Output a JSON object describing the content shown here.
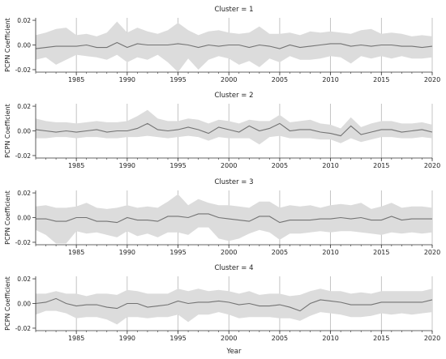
{
  "chart_data": [
    {
      "type": "area",
      "title": "Cluster = 1",
      "ylabel": "PCPN Coefficient",
      "xlabel": "",
      "xlim": [
        1981,
        2020
      ],
      "ylim": [
        -0.022,
        0.022
      ],
      "yticks": [
        -0.02,
        0.0,
        0.02
      ],
      "ytick_labels": [
        "-0.02",
        "0.00",
        "0.02"
      ],
      "xticks": [
        1985,
        1990,
        1995,
        2000,
        2005,
        2010,
        2015,
        2020
      ],
      "xtick_labels": [
        "1985",
        "1990",
        "1995",
        "2000",
        "2005",
        "2010",
        "2015",
        "2020"
      ],
      "grid": "vertical at major x ticks",
      "x": [
        1981,
        1982,
        1983,
        1984,
        1985,
        1986,
        1987,
        1988,
        1989,
        1990,
        1991,
        1992,
        1993,
        1994,
        1995,
        1996,
        1997,
        1998,
        1999,
        2000,
        2001,
        2002,
        2003,
        2004,
        2005,
        2006,
        2007,
        2008,
        2009,
        2010,
        2011,
        2012,
        2013,
        2014,
        2015,
        2016,
        2017,
        2018,
        2019,
        2020
      ],
      "series": [
        {
          "values": [
            -0.003,
            -0.002,
            -0.001,
            -0.001,
            -0.001,
            0.0,
            -0.002,
            -0.002,
            0.002,
            -0.002,
            0.001,
            0.0,
            0.0,
            0.0,
            0.001,
            0.0,
            -0.002,
            0.0,
            -0.001,
            0.0,
            0.0,
            -0.002,
            0.0,
            -0.001,
            -0.003,
            0.0,
            -0.002,
            -0.001,
            0.0,
            0.001,
            0.001,
            -0.001,
            0.0,
            -0.001,
            0.0,
            0.0,
            -0.001,
            -0.001,
            -0.002,
            -0.001
          ],
          "lower": [
            -0.012,
            -0.01,
            -0.016,
            -0.012,
            -0.008,
            -0.009,
            -0.01,
            -0.012,
            -0.008,
            -0.014,
            -0.01,
            -0.012,
            -0.008,
            -0.014,
            -0.022,
            -0.011,
            -0.02,
            -0.012,
            -0.009,
            -0.011,
            -0.016,
            -0.013,
            -0.018,
            -0.011,
            -0.014,
            -0.009,
            -0.012,
            -0.012,
            -0.011,
            -0.009,
            -0.01,
            -0.015,
            -0.009,
            -0.011,
            -0.009,
            -0.011,
            -0.009,
            -0.011,
            -0.011,
            -0.01
          ],
          "upper": [
            0.008,
            0.01,
            0.013,
            0.014,
            0.008,
            0.009,
            0.007,
            0.01,
            0.019,
            0.01,
            0.014,
            0.011,
            0.009,
            0.012,
            0.018,
            0.012,
            0.008,
            0.011,
            0.012,
            0.01,
            0.009,
            0.01,
            0.015,
            0.009,
            0.009,
            0.01,
            0.008,
            0.011,
            0.01,
            0.011,
            0.01,
            0.009,
            0.012,
            0.013,
            0.009,
            0.01,
            0.009,
            0.007,
            0.008,
            0.007
          ]
        }
      ]
    },
    {
      "type": "area",
      "title": "Cluster = 2",
      "ylabel": "PCPN Coefficient",
      "xlabel": "",
      "xlim": [
        1981,
        2020
      ],
      "ylim": [
        -0.022,
        0.022
      ],
      "yticks": [
        -0.02,
        0.0,
        0.02
      ],
      "ytick_labels": [
        "-0.02",
        "0.00",
        "0.02"
      ],
      "xticks": [
        1985,
        1990,
        1995,
        2000,
        2005,
        2010,
        2015,
        2020
      ],
      "xtick_labels": [
        "1985",
        "1990",
        "1995",
        "2000",
        "2005",
        "2010",
        "2015",
        "2020"
      ],
      "grid": "vertical at major x ticks",
      "x": [
        1981,
        1982,
        1983,
        1984,
        1985,
        1986,
        1987,
        1988,
        1989,
        1990,
        1991,
        1992,
        1993,
        1994,
        1995,
        1996,
        1997,
        1998,
        1999,
        2000,
        2001,
        2002,
        2003,
        2004,
        2005,
        2006,
        2007,
        2008,
        2009,
        2010,
        2011,
        2012,
        2013,
        2014,
        2015,
        2016,
        2017,
        2018,
        2019,
        2020
      ],
      "series": [
        {
          "values": [
            0.001,
            0.0,
            -0.001,
            0.0,
            -0.001,
            0.0,
            0.001,
            -0.001,
            0.0,
            0.0,
            0.002,
            0.006,
            0.001,
            0.0,
            0.001,
            0.003,
            0.001,
            -0.002,
            0.003,
            0.001,
            -0.001,
            0.004,
            0.0,
            0.002,
            0.006,
            0.0,
            0.001,
            0.001,
            -0.001,
            -0.002,
            -0.004,
            0.004,
            -0.003,
            -0.001,
            0.001,
            0.001,
            -0.001,
            0.0,
            0.001,
            -0.001
          ],
          "lower": [
            -0.006,
            -0.006,
            -0.005,
            -0.005,
            -0.006,
            -0.005,
            -0.005,
            -0.006,
            -0.006,
            -0.005,
            -0.005,
            -0.004,
            -0.005,
            -0.006,
            -0.005,
            -0.004,
            -0.005,
            -0.008,
            -0.005,
            -0.006,
            -0.006,
            -0.006,
            -0.011,
            -0.005,
            -0.004,
            -0.006,
            -0.006,
            -0.006,
            -0.007,
            -0.007,
            -0.01,
            -0.006,
            -0.009,
            -0.007,
            -0.005,
            -0.005,
            -0.006,
            -0.006,
            -0.005,
            -0.006
          ],
          "upper": [
            0.01,
            0.008,
            0.007,
            0.007,
            0.006,
            0.007,
            0.008,
            0.007,
            0.007,
            0.008,
            0.012,
            0.017,
            0.01,
            0.008,
            0.008,
            0.01,
            0.009,
            0.006,
            0.009,
            0.008,
            0.006,
            0.009,
            0.008,
            0.008,
            0.013,
            0.007,
            0.008,
            0.009,
            0.006,
            0.005,
            0.002,
            0.011,
            0.003,
            0.006,
            0.008,
            0.008,
            0.006,
            0.006,
            0.007,
            0.005
          ]
        }
      ]
    },
    {
      "type": "area",
      "title": "Cluster = 3",
      "ylabel": "PCPN Coefficient",
      "xlabel": "",
      "xlim": [
        1981,
        2020
      ],
      "ylim": [
        -0.022,
        0.022
      ],
      "yticks": [
        -0.02,
        0.0,
        0.02
      ],
      "ytick_labels": [
        "-0.02",
        "0.00",
        "0.02"
      ],
      "xticks": [
        1985,
        1990,
        1995,
        2000,
        2005,
        2010,
        2015,
        2020
      ],
      "xtick_labels": [
        "1985",
        "1990",
        "1995",
        "2000",
        "2005",
        "2010",
        "2015",
        "2020"
      ],
      "grid": "vertical at major x ticks",
      "x": [
        1981,
        1982,
        1983,
        1984,
        1985,
        1986,
        1987,
        1988,
        1989,
        1990,
        1991,
        1992,
        1993,
        1994,
        1995,
        1996,
        1997,
        1998,
        1999,
        2000,
        2001,
        2002,
        2003,
        2004,
        2005,
        2006,
        2007,
        2008,
        2009,
        2010,
        2011,
        2012,
        2013,
        2014,
        2015,
        2016,
        2017,
        2018,
        2019,
        2020
      ],
      "series": [
        {
          "values": [
            -0.001,
            -0.001,
            -0.003,
            -0.003,
            0.0,
            0.0,
            -0.003,
            -0.003,
            -0.004,
            0.0,
            -0.002,
            -0.002,
            -0.003,
            0.001,
            0.001,
            0.0,
            0.003,
            0.003,
            0.0,
            -0.001,
            -0.002,
            -0.003,
            0.001,
            0.001,
            -0.004,
            -0.002,
            -0.002,
            -0.002,
            -0.001,
            -0.001,
            0.0,
            -0.001,
            0.0,
            -0.002,
            -0.002,
            0.001,
            -0.002,
            -0.001,
            -0.001,
            -0.001
          ],
          "lower": [
            -0.01,
            -0.014,
            -0.021,
            -0.021,
            -0.011,
            -0.013,
            -0.012,
            -0.014,
            -0.016,
            -0.011,
            -0.015,
            -0.013,
            -0.016,
            -0.012,
            -0.012,
            -0.014,
            -0.008,
            -0.008,
            -0.017,
            -0.019,
            -0.017,
            -0.013,
            -0.01,
            -0.012,
            -0.018,
            -0.013,
            -0.013,
            -0.012,
            -0.011,
            -0.012,
            -0.011,
            -0.011,
            -0.012,
            -0.013,
            -0.014,
            -0.012,
            -0.013,
            -0.012,
            -0.013,
            -0.012
          ],
          "upper": [
            0.009,
            0.01,
            0.008,
            0.008,
            0.009,
            0.012,
            0.008,
            0.007,
            0.008,
            0.01,
            0.008,
            0.009,
            0.008,
            0.013,
            0.019,
            0.01,
            0.015,
            0.012,
            0.01,
            0.01,
            0.009,
            0.008,
            0.013,
            0.013,
            0.008,
            0.01,
            0.009,
            0.01,
            0.008,
            0.01,
            0.011,
            0.01,
            0.012,
            0.007,
            0.009,
            0.012,
            0.008,
            0.009,
            0.009,
            0.008
          ]
        }
      ]
    },
    {
      "type": "area",
      "title": "Cluster = 4",
      "ylabel": "PCPN Coefficient",
      "xlabel": "Year",
      "xlim": [
        1981,
        2020
      ],
      "ylim": [
        -0.022,
        0.022
      ],
      "yticks": [
        -0.02,
        0.0,
        0.02
      ],
      "ytick_labels": [
        "-0.02",
        "0.00",
        "0.02"
      ],
      "xticks": [
        1985,
        1990,
        1995,
        2000,
        2005,
        2010,
        2015,
        2020
      ],
      "xtick_labels": [
        "1985",
        "1990",
        "1995",
        "2000",
        "2005",
        "2010",
        "2015",
        "2020"
      ],
      "grid": "vertical at major x ticks",
      "x": [
        1981,
        1982,
        1983,
        1984,
        1985,
        1986,
        1987,
        1988,
        1989,
        1990,
        1991,
        1992,
        1993,
        1994,
        1995,
        1996,
        1997,
        1998,
        1999,
        2000,
        2001,
        2002,
        2003,
        2004,
        2005,
        2006,
        2007,
        2008,
        2009,
        2010,
        2011,
        2012,
        2013,
        2014,
        2015,
        2016,
        2017,
        2018,
        2019,
        2020
      ],
      "series": [
        {
          "values": [
            0.0,
            0.001,
            0.004,
            0.0,
            -0.002,
            -0.001,
            -0.001,
            -0.003,
            -0.004,
            0.0,
            0.0,
            -0.003,
            -0.002,
            -0.001,
            0.002,
            0.0,
            0.001,
            0.001,
            0.002,
            0.001,
            -0.001,
            0.0,
            -0.002,
            -0.002,
            -0.001,
            -0.003,
            -0.006,
            0.0,
            0.003,
            0.002,
            0.001,
            -0.001,
            -0.001,
            -0.001,
            0.001,
            0.001,
            0.001,
            0.001,
            0.001,
            0.003
          ],
          "lower": [
            -0.009,
            -0.006,
            -0.006,
            -0.008,
            -0.012,
            -0.011,
            -0.011,
            -0.013,
            -0.017,
            -0.011,
            -0.011,
            -0.012,
            -0.011,
            -0.011,
            -0.009,
            -0.015,
            -0.009,
            -0.009,
            -0.007,
            -0.009,
            -0.012,
            -0.011,
            -0.011,
            -0.011,
            -0.012,
            -0.012,
            -0.014,
            -0.01,
            -0.007,
            -0.008,
            -0.009,
            -0.011,
            -0.011,
            -0.01,
            -0.008,
            -0.009,
            -0.008,
            -0.009,
            -0.008,
            -0.007
          ],
          "upper": [
            0.008,
            0.008,
            0.01,
            0.008,
            0.008,
            0.006,
            0.008,
            0.008,
            0.007,
            0.011,
            0.01,
            0.008,
            0.008,
            0.008,
            0.012,
            0.01,
            0.012,
            0.01,
            0.011,
            0.01,
            0.008,
            0.01,
            0.007,
            0.008,
            0.008,
            0.006,
            0.007,
            0.01,
            0.012,
            0.01,
            0.01,
            0.008,
            0.009,
            0.008,
            0.01,
            0.01,
            0.01,
            0.01,
            0.01,
            0.012
          ]
        }
      ]
    }
  ],
  "colors": {
    "band": "#dcdcdc",
    "line": "#737373",
    "grid": "#b5b5b5",
    "axes": "#333333"
  }
}
